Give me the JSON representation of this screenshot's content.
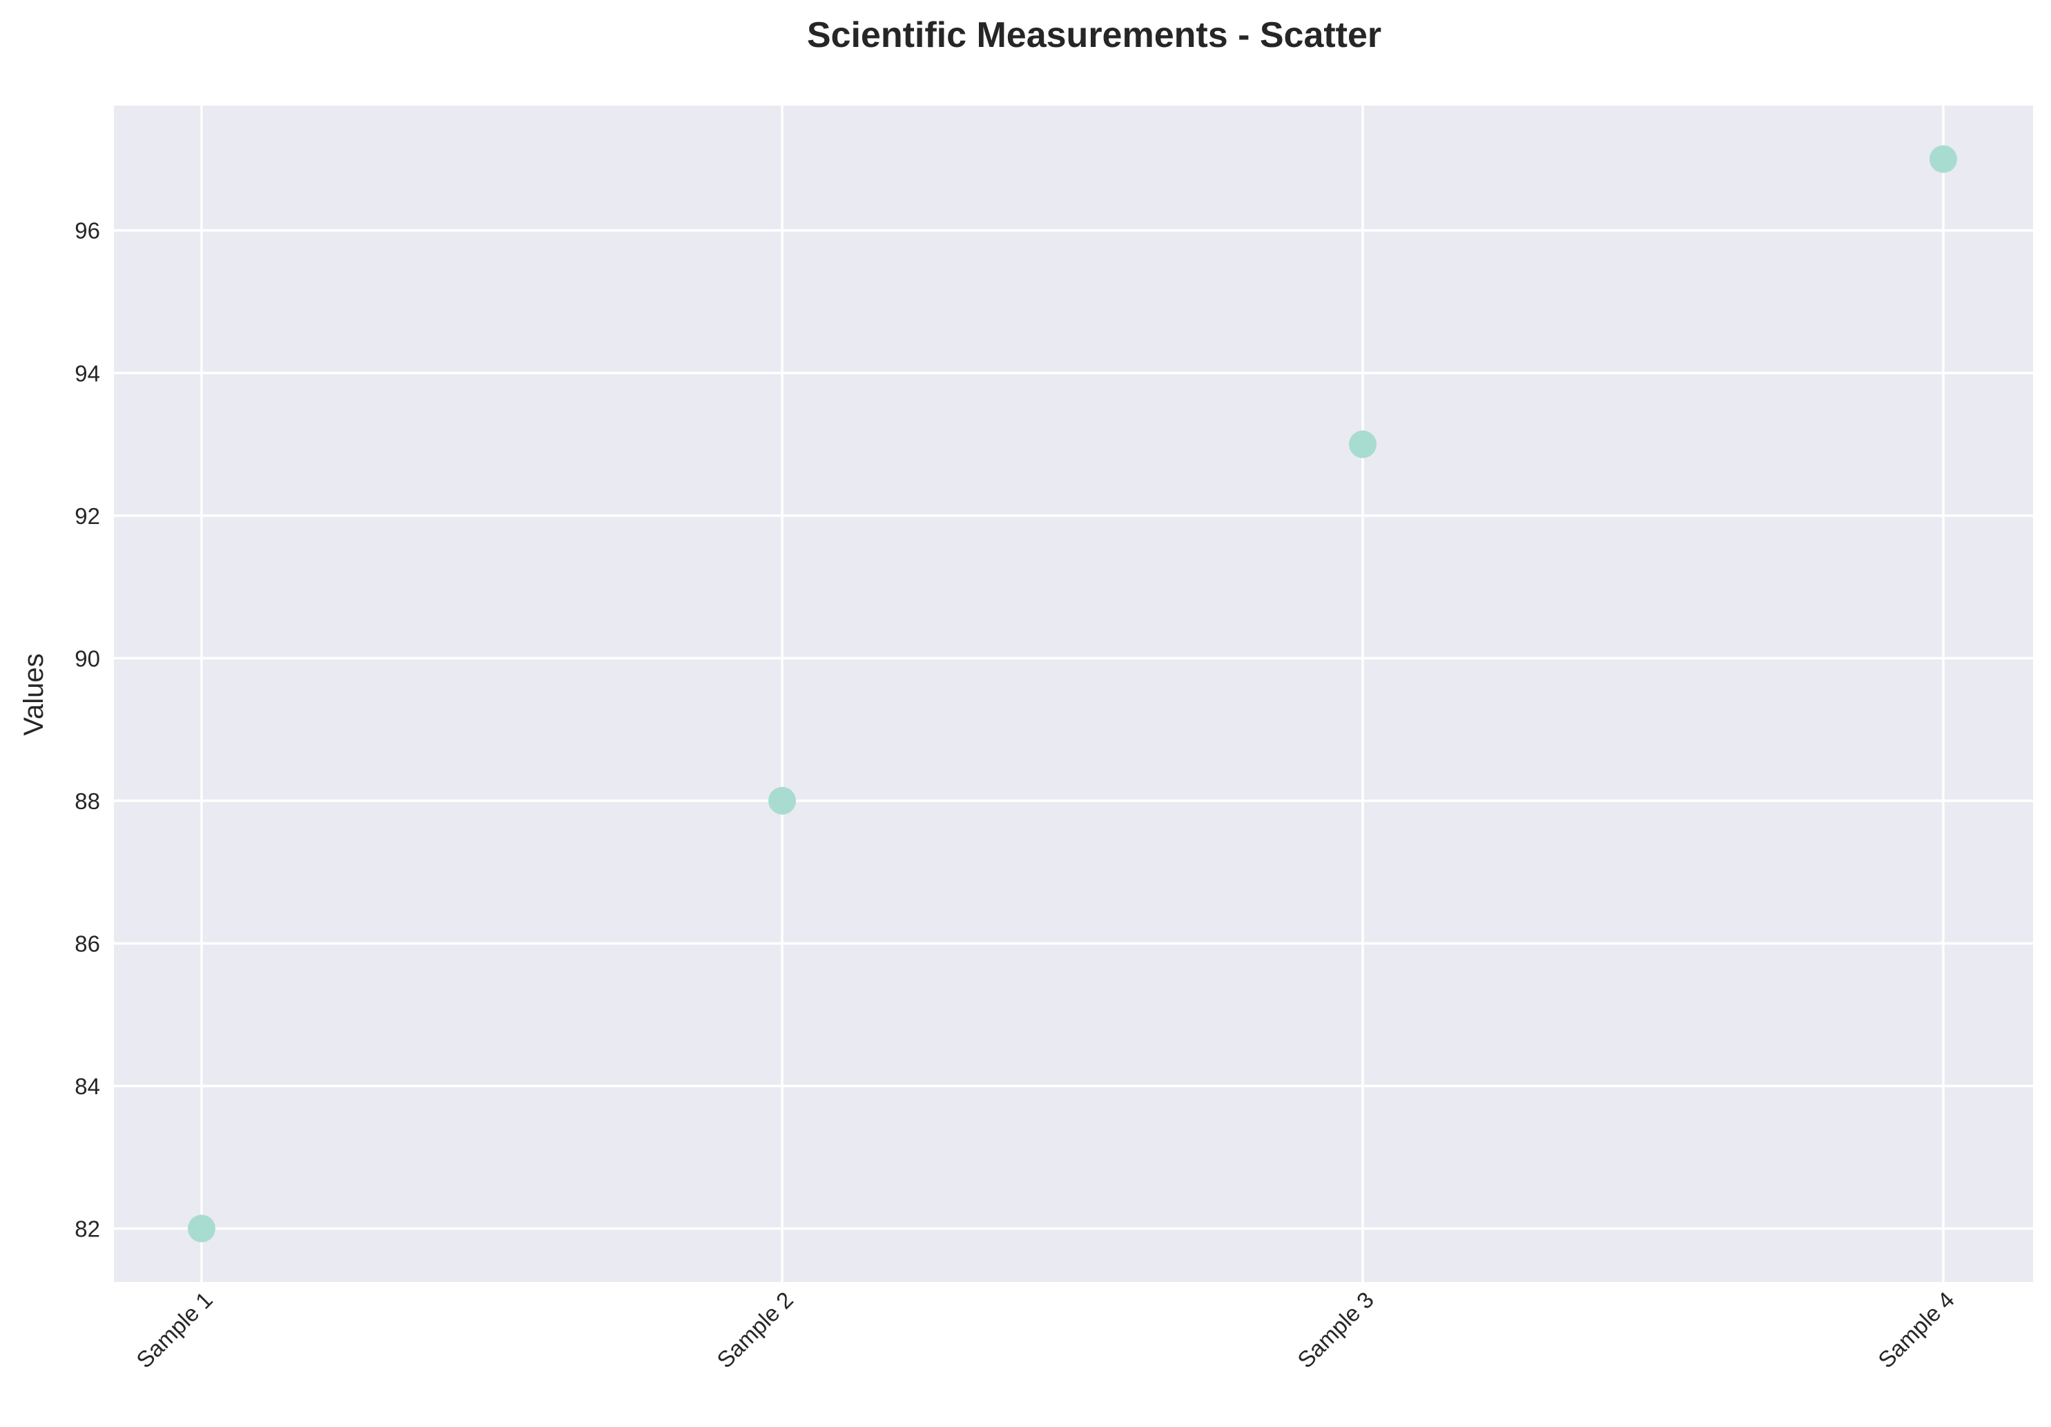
{
  "chart_data": {
    "type": "scatter",
    "title": "Scientific Measurements - Scatter",
    "xlabel": "",
    "ylabel": "Values",
    "categories": [
      "Sample 1",
      "Sample 2",
      "Sample 3",
      "Sample 4"
    ],
    "values": [
      82,
      88,
      93,
      97
    ],
    "ylim": [
      81.25,
      97.75
    ],
    "yticks": [
      82,
      84,
      86,
      88,
      90,
      92,
      94,
      96
    ],
    "grid": true,
    "legend": "none",
    "x_tick_rotation_deg": 45
  },
  "colors": {
    "plot_background": "#eaeaf2",
    "grid": "#ffffff",
    "marker": "#a8dcd1",
    "text": "#262626"
  }
}
